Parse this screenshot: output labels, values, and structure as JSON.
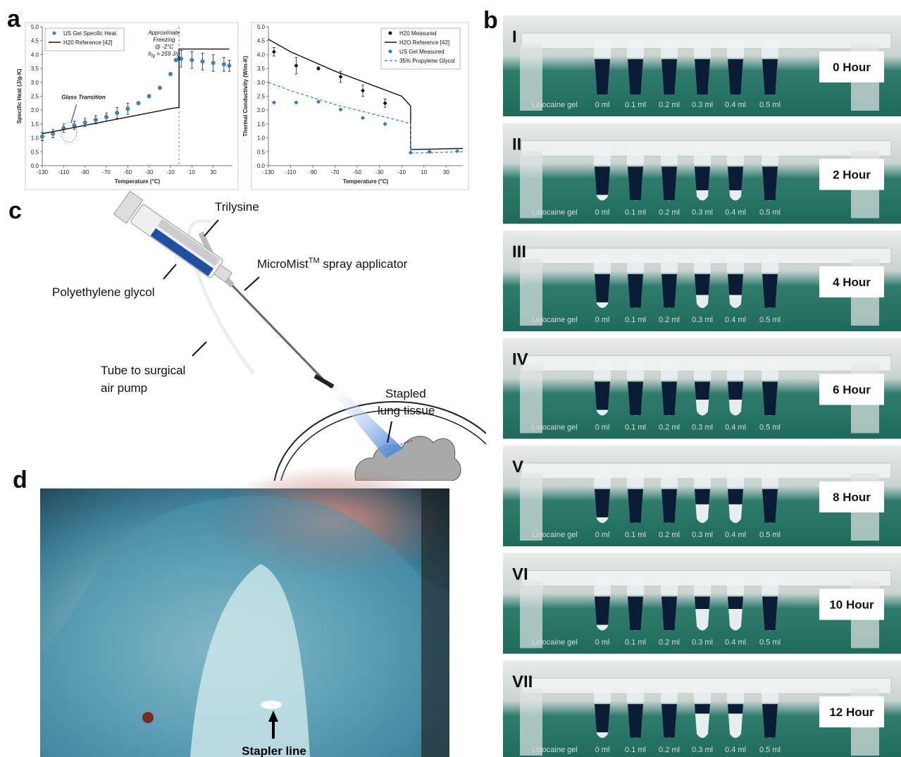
{
  "panel_labels": [
    "a",
    "b",
    "c",
    "d"
  ],
  "chart_data": [
    {
      "type": "line",
      "ylabel": "Specific Heat (J/g-K)",
      "xlabel": "Temperature (°C)",
      "xlim": [
        -130,
        48
      ],
      "xticks": [
        -130,
        -110,
        -90,
        -70,
        -50,
        -30,
        -10,
        10,
        30
      ],
      "ylim": [
        0,
        5
      ],
      "yticks": [
        {
          "value": 0,
          "label": "0.0"
        },
        {
          "value": 0.5,
          "label": "0.5"
        },
        {
          "value": 1,
          "label": "1.0"
        },
        {
          "value": 1.5,
          "label": "1.5"
        },
        {
          "value": 2,
          "label": "2.0"
        },
        {
          "value": 2.5,
          "label": "2.5"
        },
        {
          "value": 3,
          "label": "3.0"
        },
        {
          "value": 3.5,
          "label": "3.5"
        },
        {
          "value": 4,
          "label": "4.0"
        },
        {
          "value": 4.5,
          "label": "4.5"
        },
        {
          "value": 5,
          "label": "5.0"
        }
      ],
      "legend": "upper left",
      "vline": -2,
      "annotations": [
        "Glass Transition",
        "Approximate",
        "Freezing",
        "@ -2°C",
        "h",
        "fg",
        " = 259 J/g"
      ],
      "series": [
        {
          "name": "US Gel Specific Heat",
          "color": "#3f7fc1",
          "marker": "circle",
          "x": [
            -130,
            -120,
            -110,
            -100,
            -90,
            -80,
            -70,
            -60,
            -50,
            -40,
            -30,
            -20,
            -10,
            -5,
            -2,
            0,
            10,
            20,
            30,
            40,
            45
          ],
          "values": [
            1.05,
            1.15,
            1.35,
            1.45,
            1.55,
            1.65,
            1.75,
            1.9,
            2.05,
            2.25,
            2.5,
            2.8,
            3.3,
            3.8,
            3.85,
            3.85,
            3.8,
            3.75,
            3.7,
            3.65,
            3.6
          ],
          "errors": [
            0.15,
            0.15,
            0.15,
            0.15,
            0.15,
            0.15,
            0.15,
            0.2,
            0.2,
            0,
            0,
            0,
            0,
            0,
            0,
            0.3,
            0.3,
            0.3,
            0.3,
            0.25,
            0.2
          ]
        },
        {
          "name": "H20 Reference [42]",
          "color": "#111111",
          "line": "solid",
          "x": [
            -130,
            -110,
            -90,
            -70,
            -50,
            -30,
            -10,
            -2,
            -2,
            0,
            45
          ],
          "values": [
            1.15,
            1.3,
            1.45,
            1.6,
            1.75,
            1.9,
            2.05,
            2.1,
            4.2,
            4.2,
            4.2
          ]
        }
      ]
    },
    {
      "type": "line",
      "ylabel": "Thermal Conductivity (W/m-K)",
      "xlabel": "Temperature (°C)",
      "xlim": [
        -130,
        45
      ],
      "xticks": [
        -130,
        -110,
        -90,
        -70,
        -50,
        -30,
        -10,
        10,
        30
      ],
      "ylim": [
        0,
        5
      ],
      "yticks": [
        {
          "value": 0,
          "label": "0.0"
        },
        {
          "value": 0.5,
          "label": "0.5"
        },
        {
          "value": 1,
          "label": "1.0"
        },
        {
          "value": 1.5,
          "label": "1.5"
        },
        {
          "value": 2,
          "label": "2.0"
        },
        {
          "value": 2.5,
          "label": "2.5"
        },
        {
          "value": 3,
          "label": "3.0"
        },
        {
          "value": 3.5,
          "label": "3.5"
        },
        {
          "value": 4,
          "label": "4.0"
        },
        {
          "value": 4.5,
          "label": "4.5"
        },
        {
          "value": 5,
          "label": "5.0"
        }
      ],
      "legend": "upper right",
      "series": [
        {
          "name": "H20 Measured",
          "color": "#111111",
          "marker": "diamond",
          "x": [
            -125,
            -105,
            -85,
            -65,
            -45,
            -25
          ],
          "values": [
            4.1,
            3.6,
            3.5,
            3.2,
            2.7,
            2.25
          ],
          "errors": [
            0.15,
            0.3,
            0.05,
            0.2,
            0.2,
            0.15
          ]
        },
        {
          "name": "H2O Reference [42]",
          "color": "#111111",
          "line": "solid",
          "x": [
            -130,
            -110,
            -90,
            -70,
            -50,
            -30,
            -10,
            -2,
            -2,
            45
          ],
          "values": [
            4.55,
            4.1,
            3.75,
            3.4,
            3.1,
            2.8,
            2.5,
            2.15,
            0.58,
            0.62
          ]
        },
        {
          "name": "US Gel Measured",
          "color": "#2f76c0",
          "marker": "diamond",
          "x": [
            -125,
            -105,
            -85,
            -65,
            -45,
            -25,
            -2,
            15,
            40
          ],
          "values": [
            2.27,
            2.27,
            2.3,
            2.02,
            1.72,
            1.5,
            0.47,
            0.5,
            0.52
          ]
        },
        {
          "name": "35% Propylene Glycol",
          "color": "#4a8fd0",
          "line": "dashed",
          "x": [
            -130,
            -110,
            -90,
            -70,
            -50,
            -30,
            -10,
            -2,
            -2,
            45
          ],
          "values": [
            3.0,
            2.7,
            2.45,
            2.2,
            2.0,
            1.8,
            1.6,
            1.5,
            0.45,
            0.5
          ]
        }
      ]
    }
  ],
  "panel_b": {
    "tube_labels": [
      "Lidocaine gel",
      "0 ml",
      "0.1 ml",
      "0.2 ml",
      "0.3 ml",
      "0.4 ml",
      "0.5 ml"
    ],
    "rows": [
      {
        "numeral": "I",
        "time": "0 Hour"
      },
      {
        "numeral": "II",
        "time": "2 Hour"
      },
      {
        "numeral": "III",
        "time": "4 Hour"
      },
      {
        "numeral": "IV",
        "time": "6 Hour"
      },
      {
        "numeral": "V",
        "time": "8 Hour"
      },
      {
        "numeral": "VI",
        "time": "10 Hour"
      },
      {
        "numeral": "VII",
        "time": "12 Hour"
      }
    ]
  },
  "panel_c": {
    "trilysine": "Trilysine",
    "applicator": [
      "MicroMist",
      "TM",
      " spray applicator"
    ],
    "peg": "Polyethylene glycol",
    "tube": [
      "Tube to surgical",
      "air pump"
    ],
    "tissue": [
      "Stapled",
      "lung tissue"
    ]
  },
  "panel_d": {
    "label": "Stapler line"
  }
}
